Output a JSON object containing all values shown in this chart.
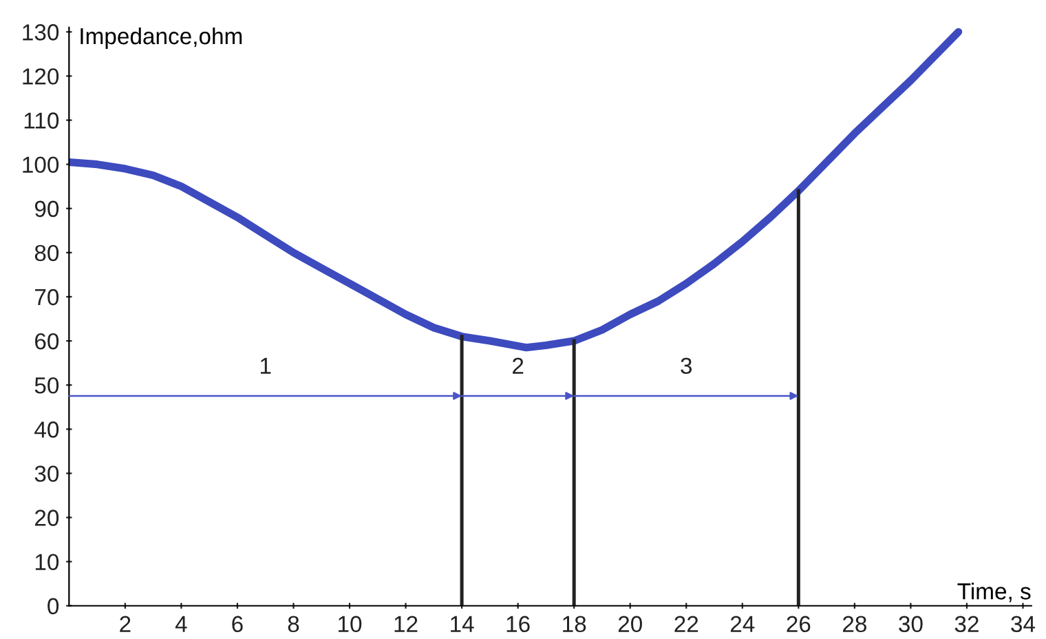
{
  "chart_data": {
    "type": "line",
    "xlabel": "Time, s",
    "ylabel": "Impedance,ohm",
    "xlim": [
      0,
      34.3
    ],
    "ylim": [
      0,
      131
    ],
    "xticks": [
      2,
      4,
      6,
      8,
      10,
      12,
      14,
      16,
      18,
      20,
      22,
      24,
      26,
      28,
      30,
      32,
      34
    ],
    "yticks": [
      0,
      10,
      20,
      30,
      40,
      50,
      60,
      70,
      80,
      90,
      100,
      110,
      120,
      130
    ],
    "grid": false,
    "legend": false,
    "marker": "none",
    "line_style": "solid",
    "series": [
      {
        "color": "#3d4bbf",
        "x": [
          0,
          1,
          2,
          3,
          4,
          5,
          6,
          7,
          8,
          9,
          10,
          11,
          12,
          13,
          14,
          15,
          16.3,
          17,
          18,
          19,
          20,
          21,
          22,
          23,
          24,
          25,
          26,
          28,
          30,
          31.7
        ],
        "values": [
          100.5,
          100,
          99,
          97.5,
          95,
          91.5,
          88,
          84,
          80,
          76.5,
          73,
          69.5,
          66,
          63,
          61,
          60,
          58.5,
          59,
          60,
          62.5,
          66,
          69,
          73,
          77.5,
          82.5,
          88,
          94,
          107,
          119,
          130
        ]
      }
    ],
    "ref_lines": [
      {
        "axis": "x",
        "value": 14,
        "color": "#222222"
      },
      {
        "axis": "x",
        "value": 18,
        "color": "#222222"
      },
      {
        "axis": "x",
        "value": 26,
        "color": "#222222"
      }
    ],
    "annotations": [
      "1",
      "2",
      "3"
    ]
  }
}
